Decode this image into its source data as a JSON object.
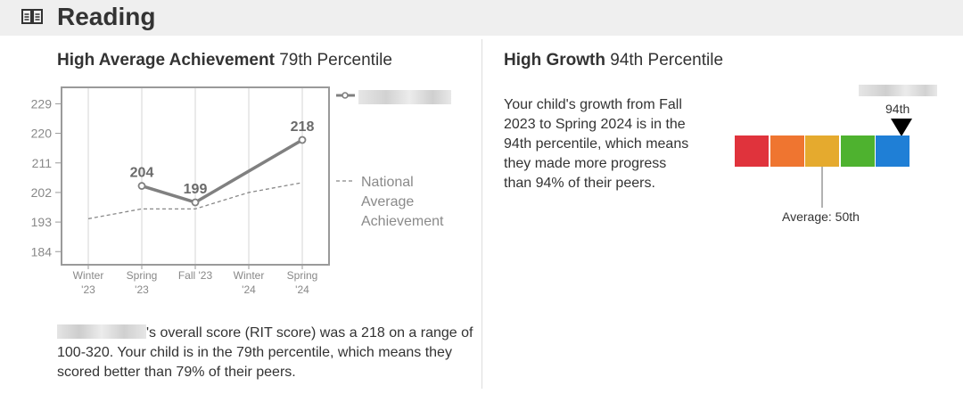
{
  "header": {
    "title": "Reading",
    "icon": "book-icon"
  },
  "achievement": {
    "heading_bold": "High Average Achievement",
    "heading_rest": "79th Percentile",
    "summary_rest": "'s overall score (RIT score) was a 218 on a range of 100-320. Your child is in the 79th percentile, which means they scored better than 79% of their peers."
  },
  "growth": {
    "heading_bold": "High Growth",
    "heading_rest": "94th Percentile",
    "description": "Your child's growth from Fall 2023 to Spring 2024 is in the 94th percentile, which means they made more progress than 94% of their peers.",
    "percentile_label": "94th",
    "average_label": "Average: 50th",
    "percentile": 94,
    "average": 50,
    "bands": [
      {
        "color": "#e0333c"
      },
      {
        "color": "#ef7530"
      },
      {
        "color": "#e5aa2e"
      },
      {
        "color": "#4eb22f"
      },
      {
        "color": "#1f7fd6"
      }
    ]
  },
  "chart_data": {
    "type": "line",
    "categories": [
      "Winter '23",
      "Spring '23",
      "Fall '23",
      "Winter '24",
      "Spring '24"
    ],
    "ytick_labels": [
      "229",
      "220",
      "211",
      "202",
      "193",
      "184"
    ],
    "ylim": [
      180,
      234
    ],
    "grid": true,
    "legend_position": "right",
    "series": [
      {
        "name": "",
        "style": "solid",
        "color": "#808080",
        "values": [
          null,
          204,
          199,
          null,
          218
        ],
        "data_labels": [
          "",
          "204",
          "199",
          "",
          "218"
        ]
      },
      {
        "name": "National Average Achievement",
        "style": "dashed",
        "color": "#888888",
        "values": [
          194,
          197,
          197,
          202,
          205
        ]
      }
    ]
  }
}
